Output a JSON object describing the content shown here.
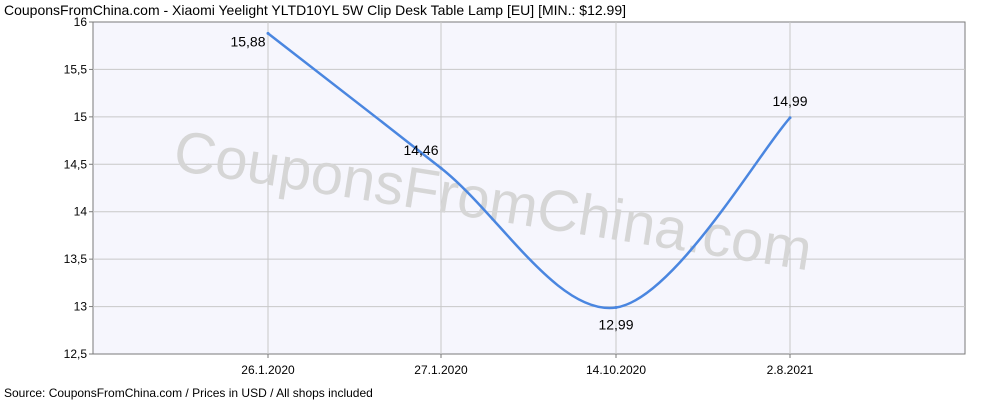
{
  "chart_data": {
    "type": "line",
    "title": "CouponsFromChina.com - Xiaomi Yeelight YLTD10YL 5W Clip Desk Table Lamp [EU] [MIN.: $12.99]",
    "source": "Source:  CouponsFromChina.com / Prices in USD / All shops included",
    "watermark": "CouponsFromChina.com",
    "categories": [
      "26.1.2020",
      "27.1.2020",
      "14.10.2020",
      "2.8.2021"
    ],
    "series": [
      {
        "values": [
          15.88,
          14.46,
          12.99,
          14.99
        ],
        "labels": [
          "15,88",
          "14,46",
          "12,99",
          "14,99"
        ]
      }
    ],
    "yticks": [
      "12,5",
      "13",
      "13,5",
      "14",
      "14,5",
      "15",
      "15,5",
      "16"
    ],
    "ylim": [
      12.5,
      16
    ],
    "grid": true,
    "colors": {
      "line": "#4a86e0",
      "plot_background": "#f6f6fd",
      "grid": "#c8c8c8",
      "axis": "#7a7a7a",
      "watermark": "#d6d6d6"
    }
  }
}
